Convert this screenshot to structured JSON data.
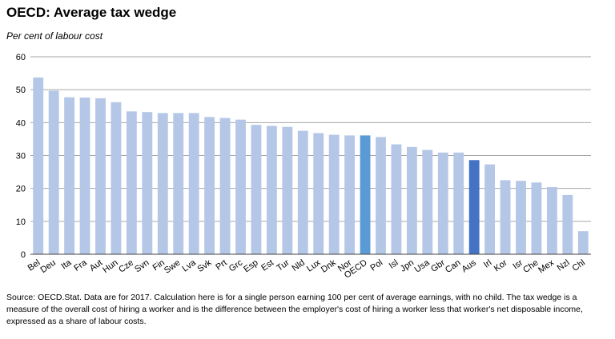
{
  "title": "OECD: Average tax wedge",
  "subtitle": "Per cent of labour cost",
  "source": "Source: OECD.Stat.  Data are for 2017.  Calculation here is for a single person earning 100 per cent of average earnings, with no child. The tax wedge is a measure of the overall cost of hiring a worker and is the difference between the employer's cost of hiring a worker less that worker's net disposable income, expressed as a share of labour costs.",
  "colors": {
    "default": "#b4c7e7",
    "oecd": "#5b9bd5",
    "aus": "#4472c4",
    "grid": "#a6a6a6",
    "axis": "#404040"
  },
  "chart_data": {
    "type": "bar",
    "title": "OECD: Average tax wedge",
    "ylabel": "Per cent of labour cost",
    "ylim": [
      0,
      60
    ],
    "yticks": [
      0,
      10,
      20,
      30,
      40,
      50,
      60
    ],
    "grid": true,
    "categories": [
      "Bel",
      "Deu",
      "Ita",
      "Fra",
      "Aut",
      "Hun",
      "Cze",
      "Svn",
      "Fin",
      "Swe",
      "Lva",
      "Svk",
      "Prt",
      "Grc",
      "Esp",
      "Est",
      "Tur",
      "Nld",
      "Lux",
      "Dnk",
      "Nor",
      "OECD",
      "Pol",
      "Isl",
      "Jpn",
      "Usa",
      "Gbr",
      "Can",
      "Aus",
      "Irl",
      "Kor",
      "Isr",
      "Che",
      "Mex",
      "Nzl",
      "Chl"
    ],
    "values": [
      53.7,
      49.7,
      47.7,
      47.6,
      47.4,
      46.2,
      43.4,
      43.2,
      42.9,
      42.9,
      42.9,
      41.7,
      41.4,
      40.9,
      39.3,
      39.0,
      38.7,
      37.5,
      36.8,
      36.3,
      36.1,
      36.1,
      35.6,
      33.4,
      32.6,
      31.7,
      30.9,
      30.9,
      28.6,
      27.3,
      22.5,
      22.3,
      21.8,
      20.4,
      18.0,
      7.0
    ],
    "highlight": {
      "OECD": "oecd",
      "Aus": "aus"
    }
  }
}
